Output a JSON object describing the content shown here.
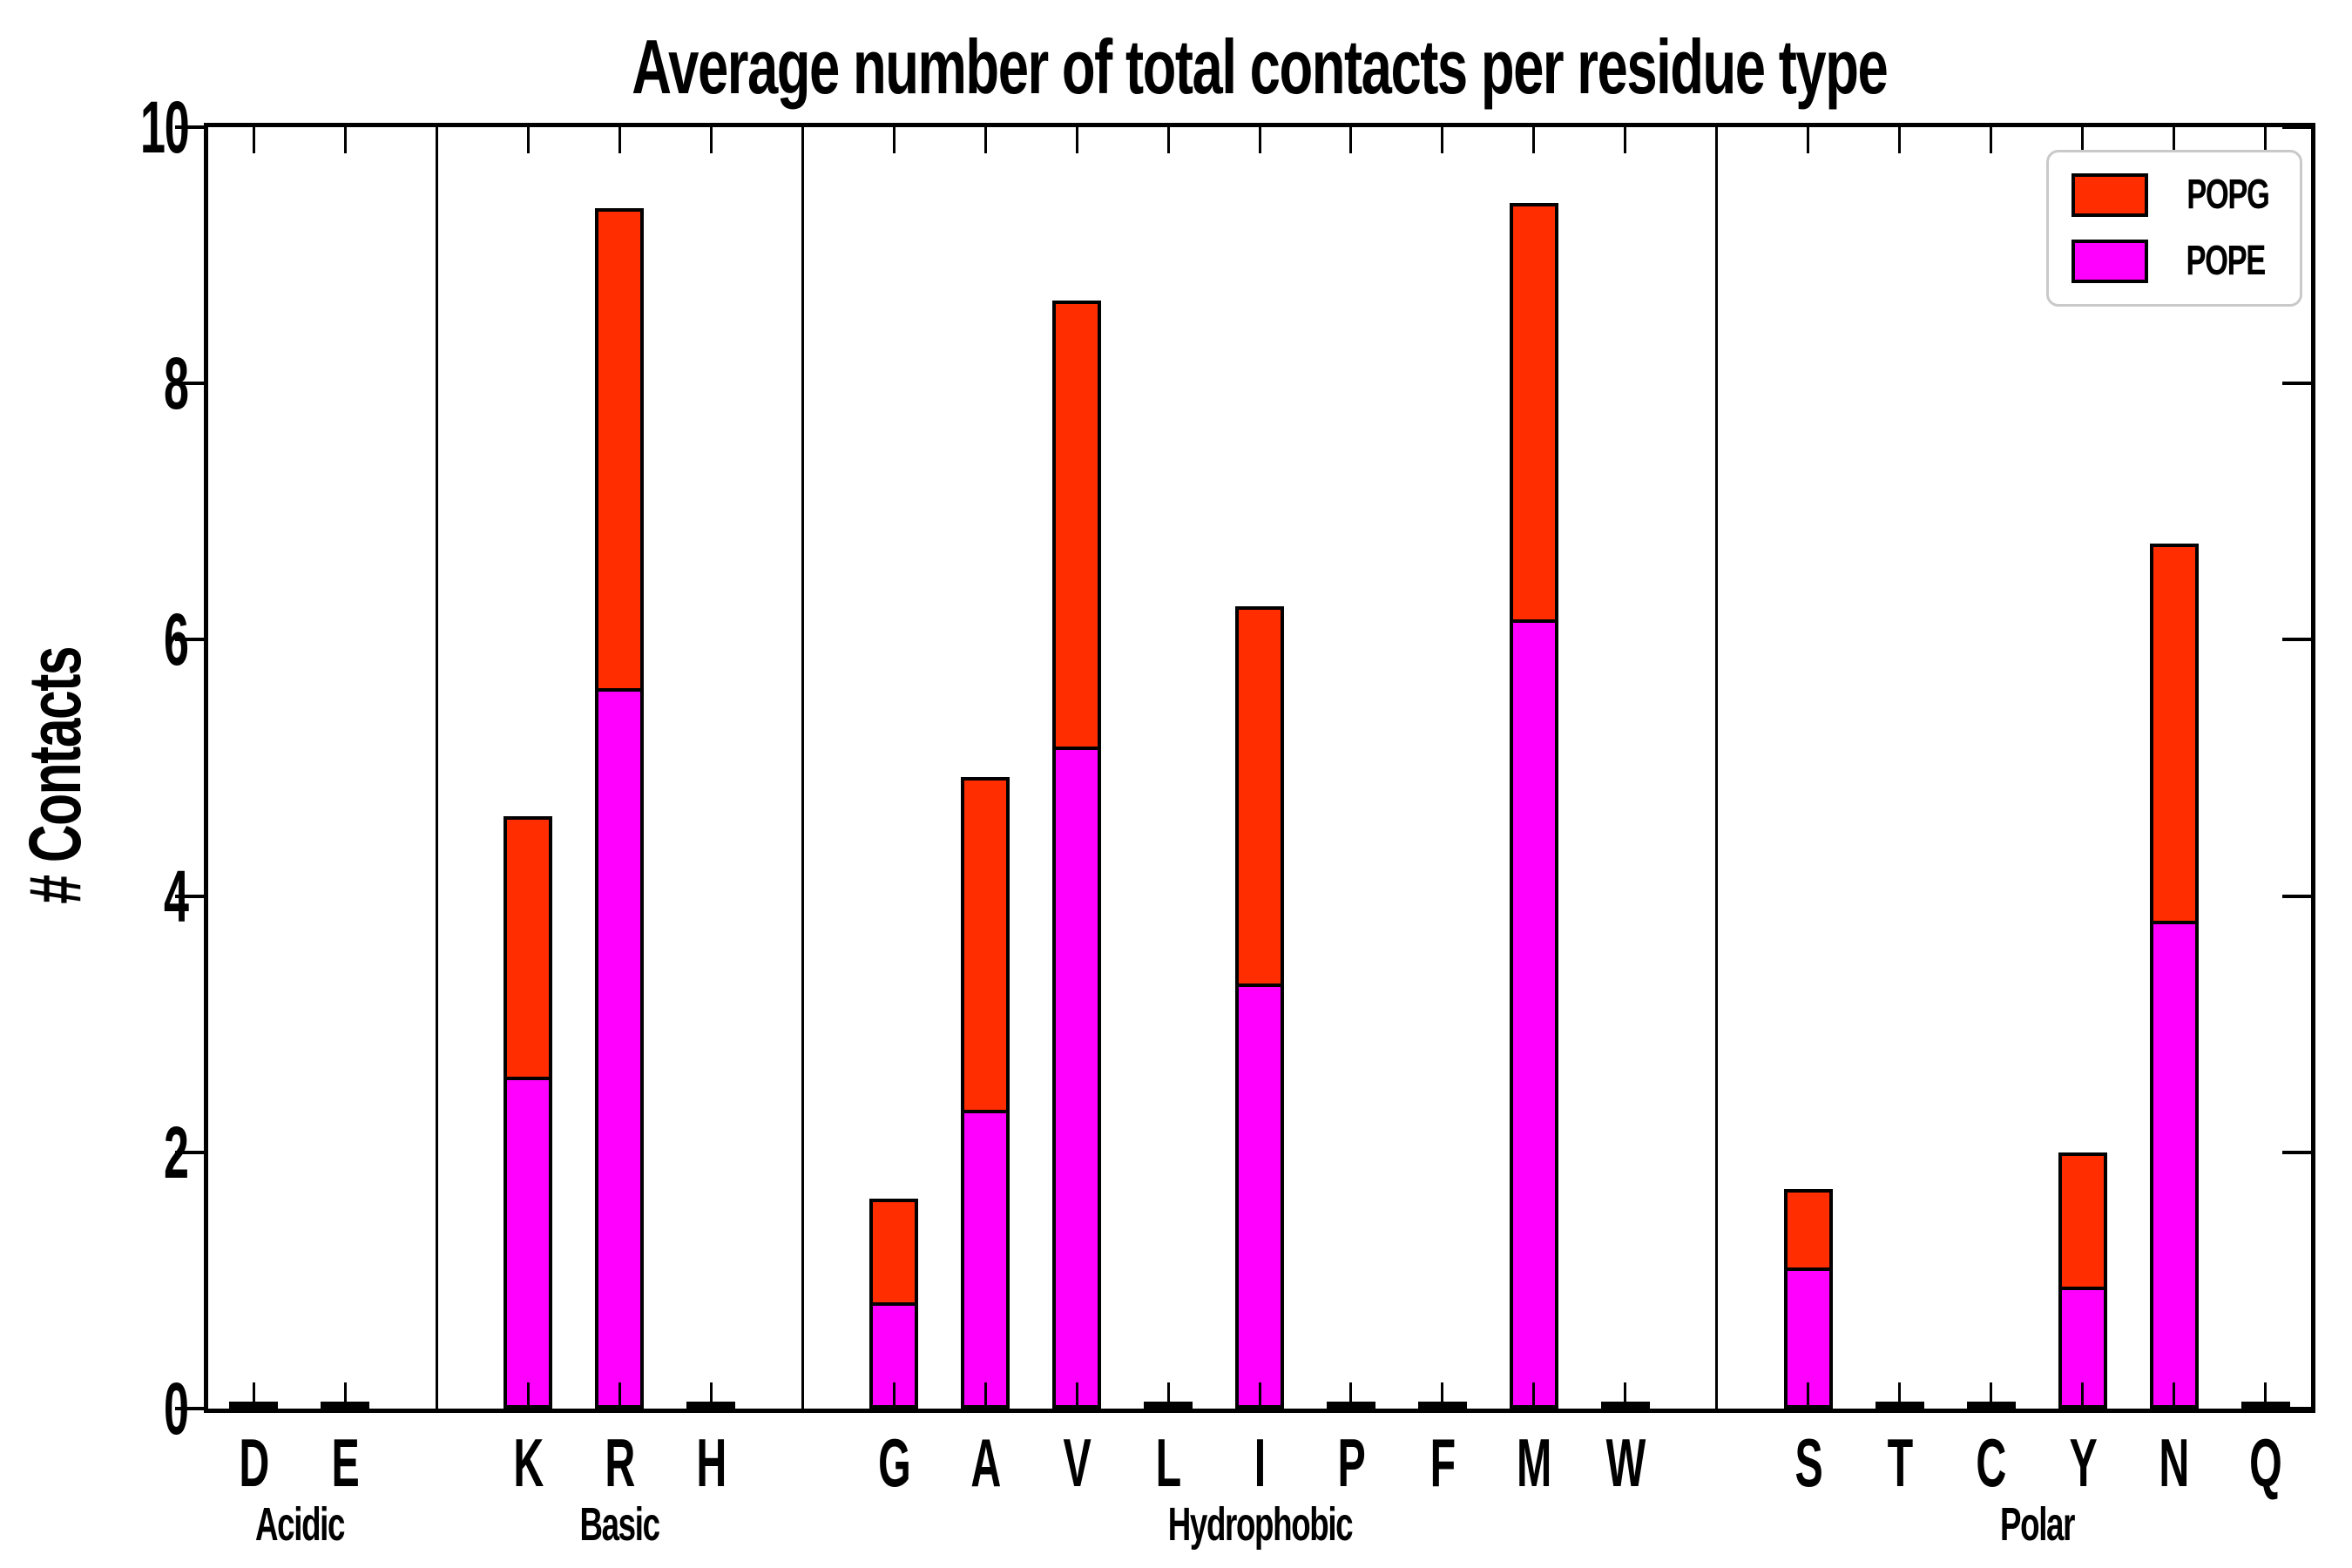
{
  "title": "Average number of total contacts per residue type",
  "ylabel": "# Contacts",
  "legend": {
    "entries": [
      {
        "label": "POPG",
        "color": "#ff2d00"
      },
      {
        "label": "POPE",
        "color": "#ff00ff"
      }
    ]
  },
  "colors": {
    "popg": "#ff2d00",
    "pope": "#ff00ff",
    "axis": "#000000",
    "background": "#ffffff",
    "legend_border": "#c9c9c9"
  },
  "chart_data": {
    "type": "bar",
    "stacked": true,
    "title": "Average number of total contacts per residue type",
    "xlabel": "",
    "ylabel": "# Contacts",
    "ylim": [
      0,
      10
    ],
    "yticks": [
      0,
      2,
      4,
      6,
      8,
      10
    ],
    "grid": false,
    "legend_position": "upper right",
    "categories": [
      "D",
      "E",
      "K",
      "R",
      "H",
      "G",
      "A",
      "V",
      "L",
      "I",
      "P",
      "F",
      "M",
      "W",
      "S",
      "T",
      "C",
      "Y",
      "N",
      "Q"
    ],
    "groups": [
      {
        "label": "Acidic",
        "residues": [
          "D",
          "E"
        ]
      },
      {
        "label": "Basic",
        "residues": [
          "K",
          "R",
          "H"
        ]
      },
      {
        "label": "Hydrophobic",
        "residues": [
          "G",
          "A",
          "V",
          "L",
          "I",
          "P",
          "F",
          "M",
          "W"
        ]
      },
      {
        "label": "Polar",
        "residues": [
          "S",
          "T",
          "C",
          "Y",
          "N",
          "Q"
        ]
      }
    ],
    "series": [
      {
        "name": "POPE",
        "color": "#ff00ff",
        "values": [
          0.02,
          0.02,
          2.59,
          5.62,
          0.02,
          0.83,
          2.33,
          5.17,
          0.02,
          3.32,
          0.01,
          0.02,
          6.16,
          0.02,
          1.1,
          0.01,
          0.02,
          0.95,
          3.81,
          0.01
        ]
      },
      {
        "name": "POPG",
        "color": "#ff2d00",
        "values": [
          0.02,
          0.01,
          2.03,
          3.75,
          0.01,
          0.81,
          2.6,
          3.48,
          0.02,
          2.94,
          0.01,
          0.01,
          3.25,
          0.01,
          0.61,
          0.01,
          0.01,
          1.05,
          2.94,
          0.01
        ]
      }
    ],
    "totals": [
      0.04,
      0.03,
      4.62,
      9.37,
      0.03,
      1.64,
      4.93,
      8.65,
      0.04,
      6.26,
      0.02,
      0.03,
      9.41,
      0.03,
      1.71,
      0.02,
      0.03,
      2.0,
      6.75,
      0.02
    ]
  }
}
